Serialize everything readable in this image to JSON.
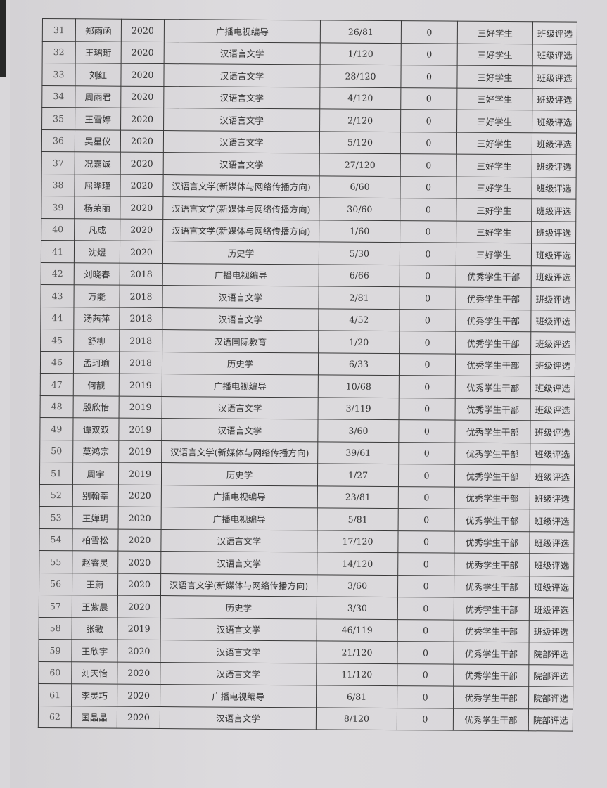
{
  "rows": [
    [
      "31",
      "郑雨函",
      "2020",
      "广播电视编导",
      "26/81",
      "0",
      "三好学生",
      "班级评选"
    ],
    [
      "32",
      "王珺珩",
      "2020",
      "汉语言文学",
      "1/120",
      "0",
      "三好学生",
      "班级评选"
    ],
    [
      "33",
      "刘红",
      "2020",
      "汉语言文学",
      "28/120",
      "0",
      "三好学生",
      "班级评选"
    ],
    [
      "34",
      "周雨君",
      "2020",
      "汉语言文学",
      "4/120",
      "0",
      "三好学生",
      "班级评选"
    ],
    [
      "35",
      "王雪婷",
      "2020",
      "汉语言文学",
      "2/120",
      "0",
      "三好学生",
      "班级评选"
    ],
    [
      "36",
      "吴星仪",
      "2020",
      "汉语言文学",
      "5/120",
      "0",
      "三好学生",
      "班级评选"
    ],
    [
      "37",
      "况嘉诚",
      "2020",
      "汉语言文学",
      "27/120",
      "0",
      "三好学生",
      "班级评选"
    ],
    [
      "38",
      "屈晔瑾",
      "2020",
      "汉语言文学(新媒体与网络传播方向)",
      "6/60",
      "0",
      "三好学生",
      "班级评选"
    ],
    [
      "39",
      "杨荣丽",
      "2020",
      "汉语言文学(新媒体与网络传播方向)",
      "30/60",
      "0",
      "三好学生",
      "班级评选"
    ],
    [
      "40",
      "凡成",
      "2020",
      "汉语言文学(新媒体与网络传播方向)",
      "1/60",
      "0",
      "三好学生",
      "班级评选"
    ],
    [
      "41",
      "沈煜",
      "2020",
      "历史学",
      "5/30",
      "0",
      "三好学生",
      "班级评选"
    ],
    [
      "42",
      "刘晓春",
      "2018",
      "广播电视编导",
      "6/66",
      "0",
      "优秀学生干部",
      "班级评选"
    ],
    [
      "43",
      "万能",
      "2018",
      "汉语言文学",
      "2/81",
      "0",
      "优秀学生干部",
      "班级评选"
    ],
    [
      "44",
      "汤茜萍",
      "2018",
      "汉语言文学",
      "4/52",
      "0",
      "优秀学生干部",
      "班级评选"
    ],
    [
      "45",
      "舒柳",
      "2018",
      "汉语国际教育",
      "1/20",
      "0",
      "优秀学生干部",
      "班级评选"
    ],
    [
      "46",
      "孟珂瑜",
      "2018",
      "历史学",
      "6/33",
      "0",
      "优秀学生干部",
      "班级评选"
    ],
    [
      "47",
      "何靓",
      "2019",
      "广播电视编导",
      "10/68",
      "0",
      "优秀学生干部",
      "班级评选"
    ],
    [
      "48",
      "殷欣怡",
      "2019",
      "汉语言文学",
      "3/119",
      "0",
      "优秀学生干部",
      "班级评选"
    ],
    [
      "49",
      "谭双双",
      "2019",
      "汉语言文学",
      "3/60",
      "0",
      "优秀学生干部",
      "班级评选"
    ],
    [
      "50",
      "莫鸿宗",
      "2019",
      "汉语言文学(新媒体与网络传播方向)",
      "39/61",
      "0",
      "优秀学生干部",
      "班级评选"
    ],
    [
      "51",
      "周宇",
      "2019",
      "历史学",
      "1/27",
      "0",
      "优秀学生干部",
      "班级评选"
    ],
    [
      "52",
      "别翰莘",
      "2020",
      "广播电视编导",
      "23/81",
      "0",
      "优秀学生干部",
      "班级评选"
    ],
    [
      "53",
      "王婵玥",
      "2020",
      "广播电视编导",
      "5/81",
      "0",
      "优秀学生干部",
      "班级评选"
    ],
    [
      "54",
      "柏雪松",
      "2020",
      "汉语言文学",
      "17/120",
      "0",
      "优秀学生干部",
      "班级评选"
    ],
    [
      "55",
      "赵睿灵",
      "2020",
      "汉语言文学",
      "14/120",
      "0",
      "优秀学生干部",
      "班级评选"
    ],
    [
      "56",
      "王蔚",
      "2020",
      "汉语言文学(新媒体与网络传播方向)",
      "3/60",
      "0",
      "优秀学生干部",
      "班级评选"
    ],
    [
      "57",
      "王紫晨",
      "2020",
      "历史学",
      "3/30",
      "0",
      "优秀学生干部",
      "班级评选"
    ],
    [
      "58",
      "张敏",
      "2019",
      "汉语言文学",
      "46/119",
      "0",
      "优秀学生干部",
      "班级评选"
    ],
    [
      "59",
      "王欣宇",
      "2020",
      "汉语言文学",
      "21/120",
      "0",
      "优秀学生干部",
      "院部评选"
    ],
    [
      "60",
      "刘天怡",
      "2020",
      "汉语言文学",
      "11/120",
      "0",
      "优秀学生干部",
      "院部评选"
    ],
    [
      "61",
      "李灵巧",
      "2020",
      "广播电视编导",
      "6/81",
      "0",
      "优秀学生干部",
      "院部评选"
    ],
    [
      "62",
      "国晶晶",
      "2020",
      "汉语言文学",
      "8/120",
      "0",
      "优秀学生干部",
      "院部评选"
    ]
  ]
}
